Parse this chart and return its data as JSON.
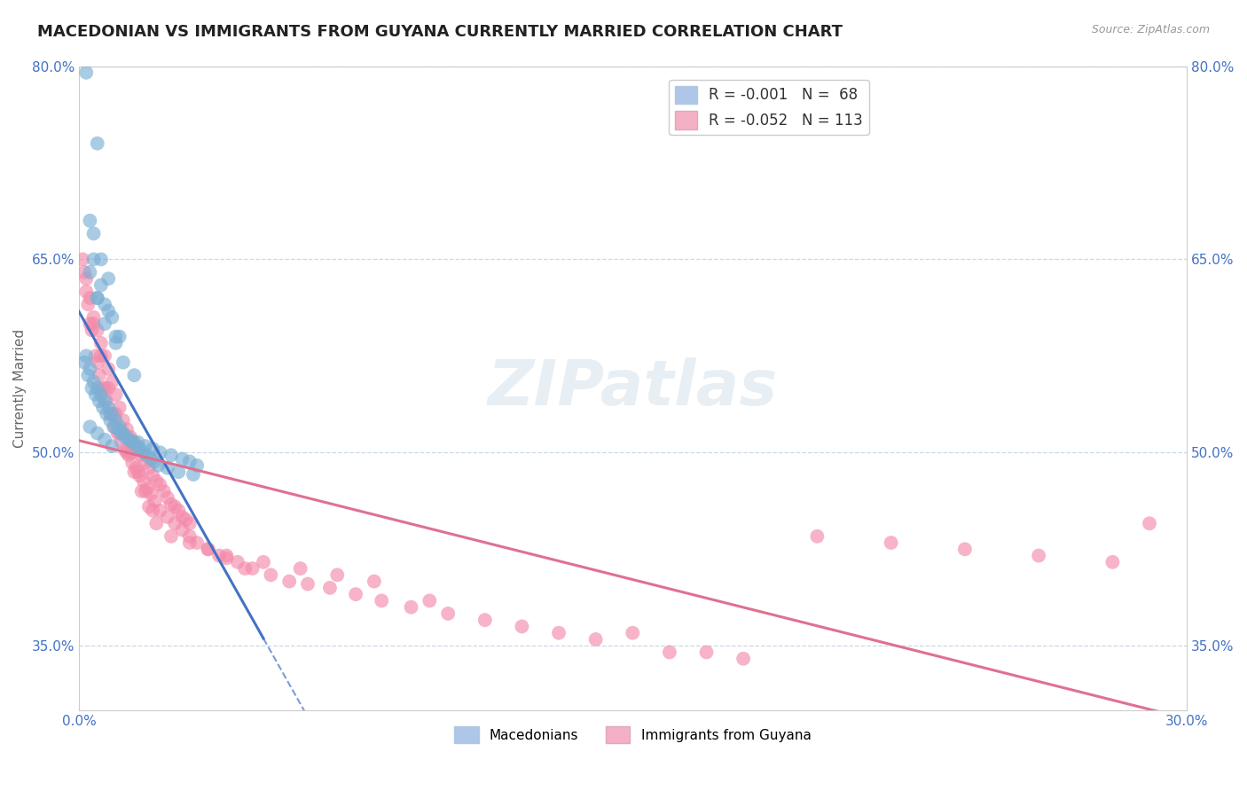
{
  "title": "MACEDONIAN VS IMMIGRANTS FROM GUYANA CURRENTLY MARRIED CORRELATION CHART",
  "source_text": "Source: ZipAtlas.com",
  "ylabel": "Currently Married",
  "xlim": [
    0.0,
    30.0
  ],
  "ylim": [
    30.0,
    80.0
  ],
  "ytick_positions": [
    35.0,
    50.0,
    65.0,
    80.0
  ],
  "xtick_positions": [
    0.0,
    30.0
  ],
  "series1_color": "#7bafd4",
  "series2_color": "#f48aaa",
  "trend1_color": "#4472c4",
  "trend2_color": "#e07090",
  "background_color": "#ffffff",
  "grid_color": "#c8d8e8",
  "watermark": "ZIPatlas",
  "title_fontsize": 13,
  "axis_label_fontsize": 11,
  "tick_fontsize": 11,
  "legend_fontsize": 12,
  "blue_legend_patch": "#aec6e8",
  "pink_legend_patch": "#f4b0c4",
  "mac_x": [
    0.2,
    0.5,
    0.3,
    0.4,
    0.6,
    0.8,
    0.5,
    0.7,
    0.9,
    1.0,
    0.3,
    0.5,
    0.7,
    1.0,
    1.2,
    1.5,
    0.4,
    0.6,
    0.8,
    1.1,
    0.2,
    0.3,
    0.4,
    0.5,
    0.6,
    0.7,
    0.8,
    0.9,
    1.0,
    1.1,
    1.2,
    1.4,
    1.6,
    1.8,
    2.0,
    2.2,
    2.5,
    2.8,
    3.0,
    3.2,
    0.15,
    0.25,
    0.35,
    0.45,
    0.55,
    0.65,
    0.75,
    0.85,
    0.95,
    1.05,
    1.15,
    1.25,
    1.35,
    1.45,
    1.55,
    1.65,
    1.75,
    1.85,
    1.95,
    2.05,
    2.15,
    2.4,
    2.7,
    3.1,
    0.3,
    0.5,
    0.7,
    0.9
  ],
  "mac_y": [
    79.5,
    74.0,
    68.0,
    67.0,
    65.0,
    63.5,
    62.0,
    61.5,
    60.5,
    59.0,
    64.0,
    62.0,
    60.0,
    58.5,
    57.0,
    56.0,
    65.0,
    63.0,
    61.0,
    59.0,
    57.5,
    56.5,
    55.5,
    55.0,
    54.5,
    54.0,
    53.5,
    53.0,
    52.5,
    52.0,
    51.5,
    51.0,
    50.8,
    50.5,
    50.3,
    50.0,
    49.8,
    49.5,
    49.3,
    49.0,
    57.0,
    56.0,
    55.0,
    54.5,
    54.0,
    53.5,
    53.0,
    52.5,
    52.0,
    51.8,
    51.5,
    51.2,
    51.0,
    50.8,
    50.5,
    50.3,
    50.0,
    49.8,
    49.5,
    49.3,
    49.0,
    48.8,
    48.5,
    48.3,
    52.0,
    51.5,
    51.0,
    50.5
  ],
  "guy_x": [
    0.1,
    0.2,
    0.3,
    0.4,
    0.5,
    0.6,
    0.7,
    0.8,
    0.9,
    1.0,
    1.1,
    1.2,
    1.3,
    1.4,
    1.5,
    1.6,
    1.7,
    1.8,
    1.9,
    2.0,
    2.1,
    2.2,
    2.3,
    2.4,
    2.5,
    2.6,
    2.7,
    2.8,
    2.9,
    3.0,
    0.15,
    0.25,
    0.35,
    0.45,
    0.55,
    0.65,
    0.75,
    0.85,
    0.95,
    1.05,
    1.15,
    1.25,
    1.35,
    1.45,
    1.55,
    1.65,
    1.75,
    1.85,
    1.95,
    2.05,
    2.2,
    2.4,
    2.6,
    2.8,
    3.0,
    3.2,
    3.5,
    3.8,
    4.0,
    4.3,
    4.7,
    5.2,
    5.7,
    6.2,
    6.8,
    7.5,
    8.2,
    9.0,
    10.0,
    11.0,
    12.0,
    13.0,
    14.0,
    16.0,
    18.0,
    20.0,
    22.0,
    24.0,
    26.0,
    28.0,
    0.2,
    0.4,
    0.6,
    0.8,
    1.0,
    1.2,
    1.4,
    1.6,
    1.8,
    2.0,
    0.3,
    0.5,
    0.7,
    0.9,
    1.1,
    1.3,
    1.5,
    1.7,
    1.9,
    2.1,
    2.5,
    3.0,
    3.5,
    4.0,
    5.0,
    6.0,
    7.0,
    8.0,
    4.5,
    9.5,
    15.0,
    17.0,
    29.0
  ],
  "guy_y": [
    65.0,
    63.5,
    62.0,
    60.5,
    59.5,
    58.5,
    57.5,
    56.5,
    55.5,
    54.5,
    53.5,
    52.5,
    51.8,
    51.2,
    50.8,
    50.2,
    49.8,
    49.2,
    48.8,
    48.2,
    47.8,
    47.5,
    47.0,
    46.5,
    46.0,
    45.8,
    45.5,
    45.0,
    44.8,
    44.5,
    64.0,
    61.5,
    59.5,
    57.5,
    56.0,
    55.0,
    54.0,
    53.0,
    52.0,
    51.5,
    50.8,
    50.2,
    49.8,
    49.2,
    48.8,
    48.2,
    47.8,
    47.2,
    46.8,
    46.2,
    45.5,
    45.0,
    44.5,
    44.0,
    43.5,
    43.0,
    42.5,
    42.0,
    41.8,
    41.5,
    41.0,
    40.5,
    40.0,
    39.8,
    39.5,
    39.0,
    38.5,
    38.0,
    37.5,
    37.0,
    36.5,
    36.0,
    35.5,
    34.5,
    34.0,
    43.5,
    43.0,
    42.5,
    42.0,
    41.5,
    62.5,
    60.0,
    57.5,
    55.0,
    53.0,
    51.5,
    50.0,
    48.5,
    47.0,
    45.5,
    60.0,
    57.0,
    55.0,
    53.0,
    51.5,
    50.0,
    48.5,
    47.0,
    45.8,
    44.5,
    43.5,
    43.0,
    42.5,
    42.0,
    41.5,
    41.0,
    40.5,
    40.0,
    41.0,
    38.5,
    36.0,
    34.5,
    44.5
  ]
}
